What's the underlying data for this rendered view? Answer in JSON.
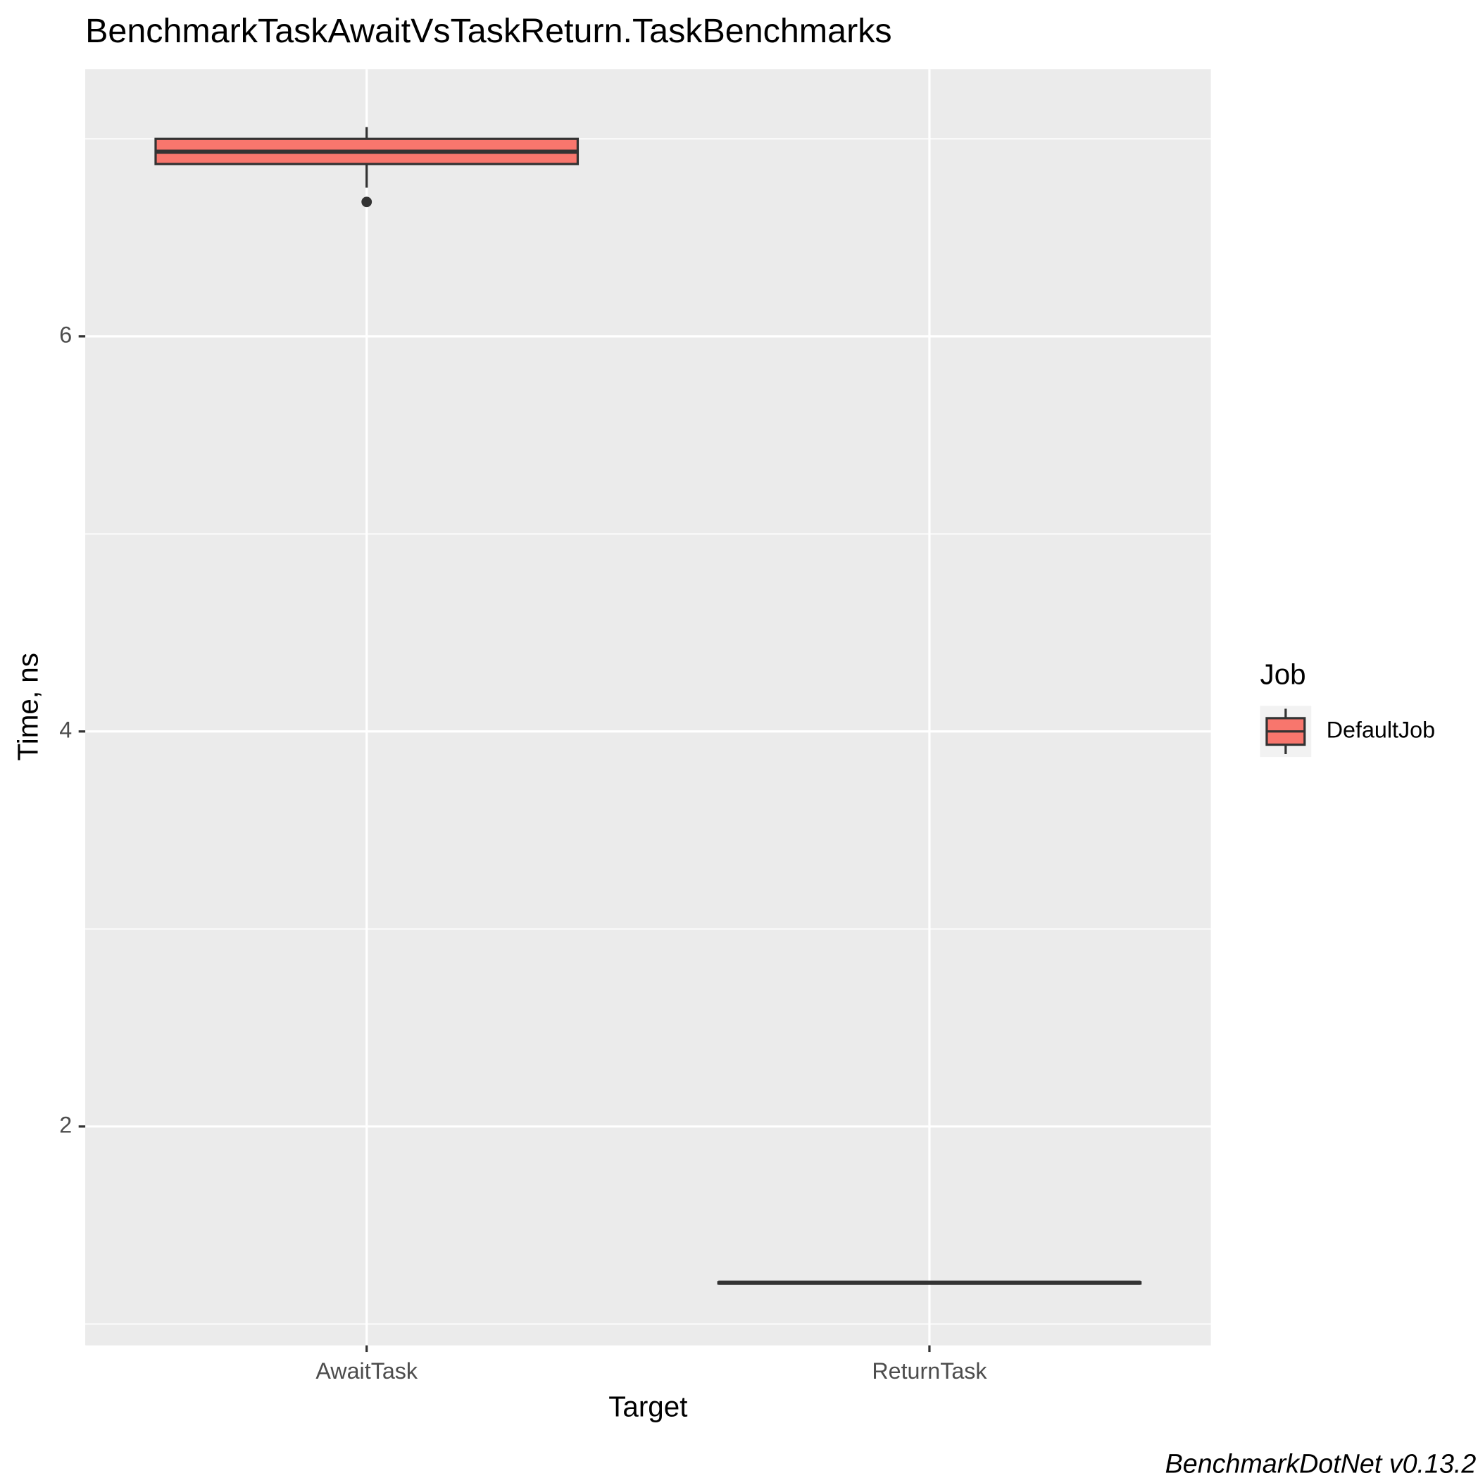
{
  "chart_data": {
    "type": "box",
    "title": "BenchmarkTaskAwaitVsTaskReturn.TaskBenchmarks",
    "x_label": "Target",
    "y_label": "Time, ns",
    "caption": "BenchmarkDotNet v0.13.2",
    "legend_title": "Job",
    "legend_position": "right",
    "categories": [
      "AwaitTask",
      "ReturnTask"
    ],
    "series": [
      {
        "name": "DefaultJob",
        "color": "#F8766D",
        "min": [
          6.753,
          1.2
        ],
        "q1": [
          6.873,
          1.205
        ],
        "median": [
          6.935,
          1.209
        ],
        "q3": [
          7.0,
          1.212
        ],
        "max": [
          7.06,
          1.215
        ],
        "outliers": [
          [
            6.681
          ],
          []
        ]
      }
    ],
    "ylim": [
      0.892,
      7.353
    ],
    "yticks": [
      2,
      4,
      6
    ],
    "grid": true
  }
}
